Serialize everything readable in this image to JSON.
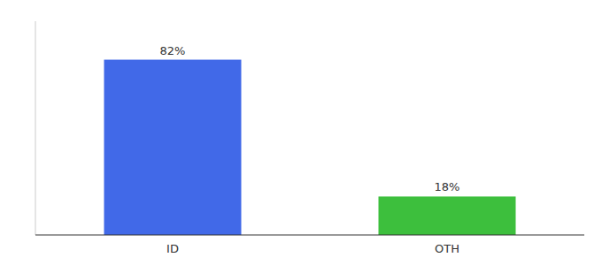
{
  "chart_data": {
    "type": "bar",
    "categories": [
      "ID",
      "OTH"
    ],
    "values": [
      82,
      18
    ],
    "value_labels": [
      "82%",
      "18%"
    ],
    "colors": [
      "#4169e8",
      "#3dbf3d"
    ],
    "ylim": [
      0,
      100
    ],
    "data_labels": true,
    "tick_labels": "x"
  }
}
